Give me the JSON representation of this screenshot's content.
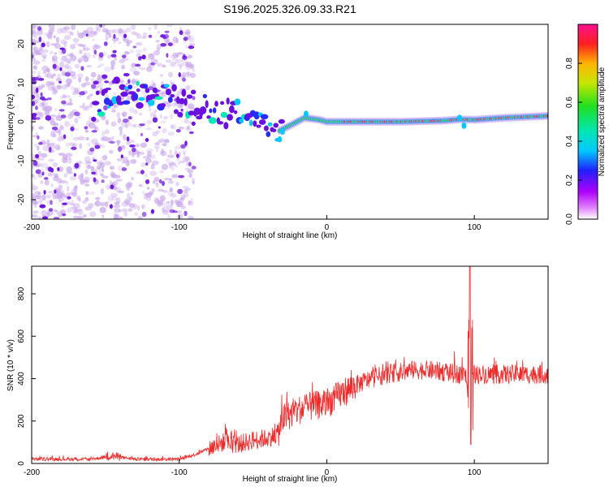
{
  "chart_data": [
    {
      "type": "heatmap",
      "title": "S196.2025.326.09.33.R21",
      "xlabel": "Height of straight line (km)",
      "ylabel": "Frequency (Hz)",
      "xlim": [
        -200,
        150
      ],
      "ylim": [
        -25,
        25
      ],
      "x_ticks": [
        -200,
        -100,
        0,
        100
      ],
      "x_tick_labels": [
        "-200",
        "-100",
        "0",
        "100"
      ],
      "y_ticks": [
        -20,
        -10,
        0,
        10,
        20
      ],
      "y_tick_labels": [
        "-20",
        "-10",
        "0",
        "10",
        "20"
      ],
      "colorbar": {
        "label": "Normalized spectral amplitude",
        "range": [
          0,
          1
        ],
        "ticks": [
          0.0,
          0.2,
          0.4,
          0.6,
          0.8
        ],
        "tick_labels": [
          "0.0",
          "0.2",
          "0.4",
          "0.6",
          "0.8"
        ]
      },
      "ridge": {
        "x": [
          -155,
          -145,
          -130,
          -110,
          -95,
          -80,
          -65,
          -50,
          -40,
          -33,
          -25,
          -15,
          -5,
          0,
          20,
          50,
          80,
          90,
          100,
          120,
          150
        ],
        "y": [
          4,
          7,
          8,
          6,
          5,
          3,
          2,
          1,
          -1,
          -2.5,
          -1,
          1,
          0.5,
          0,
          0,
          0,
          0.3,
          0.6,
          0.5,
          1,
          1.5
        ]
      },
      "colors": {
        "noise": "#c9a8ec",
        "cluster": "#6a10e0"
      }
    },
    {
      "type": "line",
      "xlabel": "Height of straight line (km)",
      "ylabel": "SNR (10 * v/v)",
      "xlim": [
        -200,
        150
      ],
      "ylim": [
        0,
        930
      ],
      "x_ticks": [
        -200,
        -100,
        0,
        100
      ],
      "x_tick_labels": [
        "-200",
        "-100",
        "0",
        "100"
      ],
      "y_ticks": [
        0,
        200,
        400,
        600,
        800
      ],
      "y_tick_labels": [
        "0",
        "200",
        "400",
        "600",
        "800"
      ],
      "series": [
        {
          "name": "SNR",
          "color": "#ee2b2b",
          "trend_x": [
            -200,
            -160,
            -145,
            -130,
            -100,
            -90,
            -80,
            -70,
            -60,
            -50,
            -40,
            -33,
            -30,
            -20,
            -10,
            0,
            10,
            20,
            30,
            40,
            50,
            60,
            70,
            80,
            90,
            95,
            150
          ],
          "trend_y": [
            20,
            20,
            35,
            20,
            20,
            40,
            70,
            100,
            90,
            110,
            120,
            140,
            210,
            250,
            270,
            280,
            330,
            370,
            400,
            420,
            430,
            440,
            440,
            430,
            420,
            420,
            420
          ],
          "spike_x": 97,
          "spike_max": 930,
          "spike_min": 90
        }
      ]
    }
  ]
}
